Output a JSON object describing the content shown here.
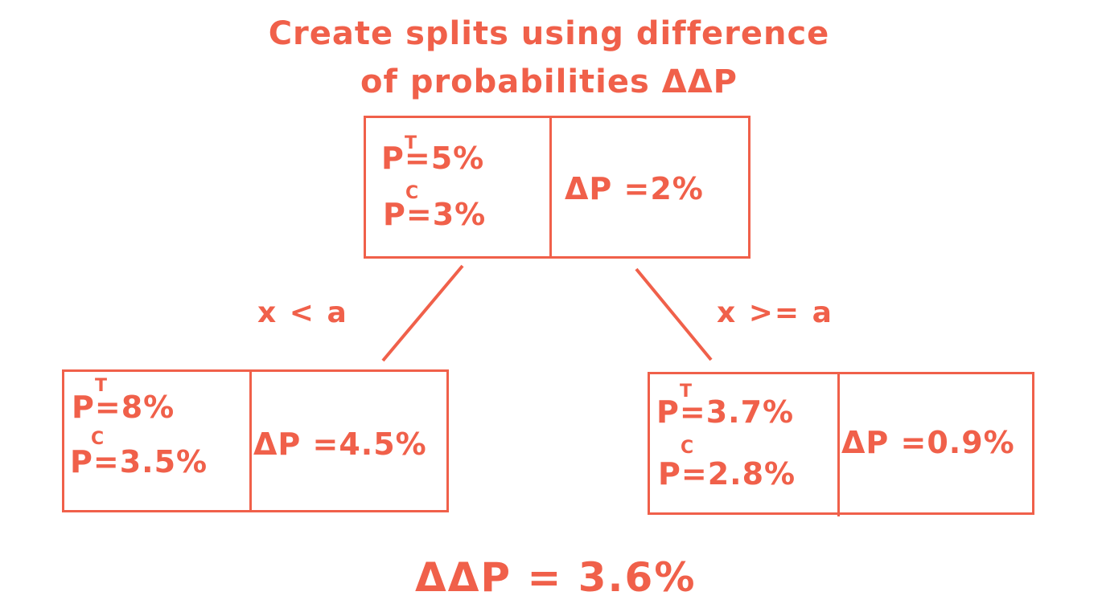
{
  "title": {
    "line1": "Create splits using difference",
    "line2": "of probabilities ΔΔP"
  },
  "root": {
    "p_letter": "P",
    "t_sup": "T",
    "c_sup": "C",
    "pt": "=5%",
    "pc": "=3%",
    "delta": "ΔP =2%"
  },
  "left": {
    "condition": "x < a",
    "p_letter": "P",
    "t_sup": "T",
    "c_sup": "C",
    "pt": "=8%",
    "pc": "=3.5%",
    "delta": "ΔP =4.5%"
  },
  "right": {
    "condition": "x >= a",
    "p_letter": "P",
    "t_sup": "T",
    "c_sup": "C",
    "pt": "=3.7%",
    "pc": "=2.8%",
    "delta": "ΔP =0.9%"
  },
  "result": "ΔΔP = 3.6%",
  "colors": {
    "accent": "#f0604a",
    "background": "#ffffff"
  }
}
